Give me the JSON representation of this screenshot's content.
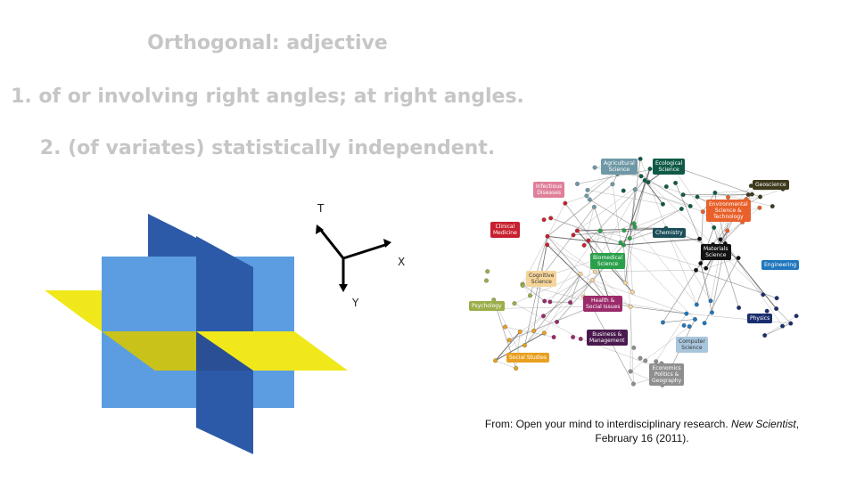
{
  "heading": {
    "title": "Orthogonal: adjective",
    "def1": "1. of or involving right angles; at right angles.",
    "def2": "2. (of variates) statistically independent."
  },
  "axes": {
    "t": "T",
    "x": "X",
    "y": "Y"
  },
  "network": {
    "labels": [
      {
        "text": [
          "Agricultural",
          "Science"
        ],
        "color": "#6f98a6"
      },
      {
        "text": [
          "Ecological",
          "Science"
        ],
        "color": "#0f5a46"
      },
      {
        "text": [
          "Geoscience"
        ],
        "color": "#3d3a1c"
      },
      {
        "text": [
          "Infectious",
          "Diseases"
        ],
        "color": "#e07f9a"
      },
      {
        "text": [
          "Environmental",
          "Science &",
          "Technology"
        ],
        "color": "#e8602a"
      },
      {
        "text": [
          "Clinical",
          "Medicine"
        ],
        "color": "#c8202f"
      },
      {
        "text": [
          "Chemistry"
        ],
        "color": "#1b4e58"
      },
      {
        "text": [
          "Materials",
          "Science"
        ],
        "color": "#111111"
      },
      {
        "text": [
          "Biomedical",
          "Science"
        ],
        "color": "#2aa04a"
      },
      {
        "text": [
          "Engineering"
        ],
        "color": "#2077bd"
      },
      {
        "text": [
          "Cognitive",
          "Science"
        ],
        "color": "#f6d59a"
      },
      {
        "text": [
          "Psychology"
        ],
        "color": "#9aae4a"
      },
      {
        "text": [
          "Health &",
          "Social Issues"
        ],
        "color": "#9a2a6a"
      },
      {
        "text": [
          "Physics"
        ],
        "color": "#1a2e6e"
      },
      {
        "text": [
          "Business &",
          "Management"
        ],
        "color": "#4a1a4e"
      },
      {
        "text": [
          "Computer",
          "Science"
        ],
        "color": "#a8c6dc"
      },
      {
        "text": [
          "Social Studies"
        ],
        "color": "#e8a020"
      },
      {
        "text": [
          "Economics",
          "Politics &",
          "Geography"
        ],
        "color": "#8f8f8f"
      }
    ]
  },
  "caption": {
    "prefix": "From: Open your mind to interdisciplinary research. ",
    "journal": "New Scientist",
    "suffix": ",",
    "line2": "February 16 (2011)."
  }
}
